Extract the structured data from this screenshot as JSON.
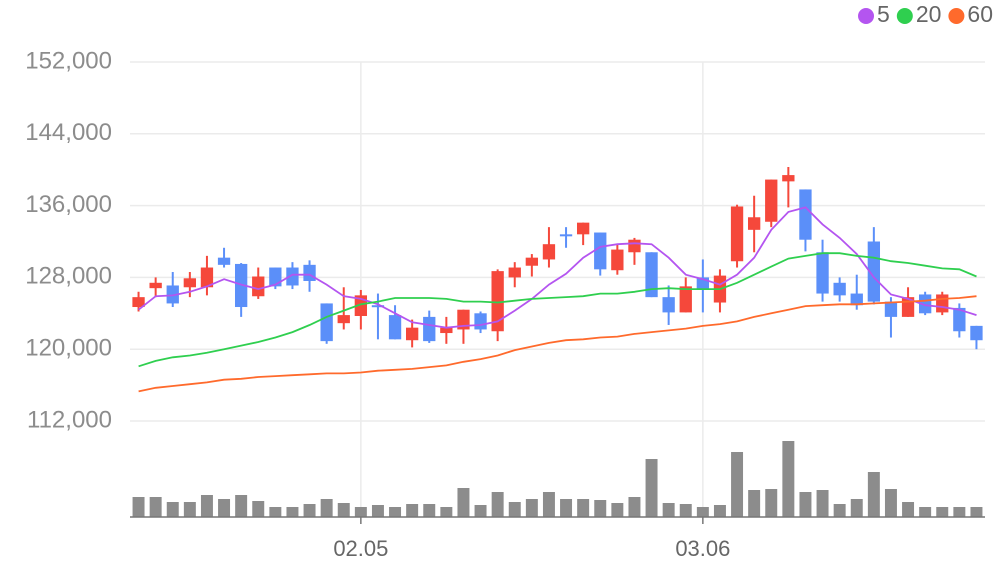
{
  "chart_data": {
    "type": "candlestick",
    "categories": [
      null,
      null,
      null,
      null,
      null,
      null,
      null,
      null,
      null,
      null,
      null,
      null,
      null,
      "02.05",
      null,
      null,
      null,
      null,
      null,
      null,
      null,
      null,
      null,
      null,
      null,
      null,
      null,
      null,
      null,
      null,
      null,
      null,
      null,
      "03.06",
      null,
      null,
      null,
      null,
      null,
      null,
      null,
      null,
      null,
      null,
      null,
      null,
      null,
      null,
      null,
      null
    ],
    "open": [
      124700,
      126800,
      127100,
      126900,
      126900,
      130200,
      129500,
      125900,
      129100,
      129100,
      129400,
      125100,
      122900,
      123700,
      124900,
      123800,
      121000,
      123600,
      121800,
      122200,
      124000,
      122000,
      128000,
      129300,
      130000,
      132800,
      132800,
      133000,
      128800,
      130800,
      130800,
      125800,
      124100,
      128000,
      125200,
      129800,
      133300,
      134200,
      138700,
      137800,
      130800,
      127400,
      126200,
      132000,
      125300,
      123600,
      126100,
      124100,
      124600,
      122600
    ],
    "high": [
      126400,
      128000,
      128600,
      128600,
      130400,
      131300,
      129600,
      129100,
      129100,
      129700,
      129900,
      125100,
      126900,
      126600,
      126200,
      124900,
      123300,
      124300,
      123600,
      124400,
      124200,
      128900,
      129700,
      130600,
      133600,
      133600,
      134100,
      133000,
      131700,
      132400,
      130800,
      127100,
      128000,
      130000,
      128900,
      136100,
      137100,
      138900,
      140300,
      137800,
      132200,
      128000,
      128300,
      133600,
      125800,
      126900,
      126400,
      126400,
      125100,
      122600
    ],
    "low": [
      124200,
      125800,
      124700,
      125800,
      126000,
      129100,
      123600,
      125600,
      126700,
      126700,
      126400,
      120600,
      122200,
      122200,
      121100,
      121100,
      120200,
      120700,
      120600,
      120600,
      121800,
      120900,
      126900,
      128100,
      129100,
      131300,
      131600,
      128200,
      128300,
      129400,
      125800,
      122700,
      124100,
      124100,
      124100,
      129100,
      130800,
      133600,
      135800,
      130900,
      125300,
      125300,
      124400,
      125000,
      121300,
      123600,
      123800,
      123800,
      121300,
      120000
    ],
    "close": [
      125800,
      127400,
      125100,
      127900,
      129100,
      129400,
      124700,
      128100,
      127000,
      127100,
      127600,
      120900,
      123800,
      126000,
      124800,
      121100,
      122400,
      120900,
      122400,
      124400,
      122200,
      128700,
      129100,
      130200,
      131700,
      132600,
      134100,
      128900,
      131100,
      132200,
      125800,
      124100,
      127000,
      126600,
      128200,
      135900,
      134700,
      138900,
      139400,
      132200,
      126200,
      126000,
      124900,
      125300,
      123600,
      125800,
      124000,
      126100,
      122000,
      121000
    ],
    "up_color": "#f5483b",
    "down_color": "#5b8ff9",
    "series": [
      {
        "name": "5",
        "color": "#b455f0",
        "values": [
          124400,
          125900,
          126000,
          126400,
          127000,
          127800,
          127200,
          126700,
          127200,
          128300,
          128300,
          127200,
          125900,
          125600,
          125000,
          124000,
          123000,
          122700,
          122400,
          122600,
          122700,
          123100,
          124300,
          125600,
          127200,
          128400,
          130200,
          131400,
          131700,
          131800,
          131700,
          130200,
          128300,
          127800,
          127200,
          128300,
          130200,
          133300,
          135300,
          135800,
          133900,
          132400,
          130600,
          128000,
          126100,
          125600,
          124900,
          124700,
          124400,
          123800
        ]
      },
      {
        "name": "20",
        "color": "#2fcf4f",
        "values": [
          118100,
          118700,
          119100,
          119300,
          119600,
          120000,
          120400,
          120800,
          121300,
          121900,
          122700,
          123600,
          124300,
          125000,
          125300,
          125700,
          125700,
          125700,
          125600,
          125300,
          125300,
          125200,
          125400,
          125600,
          125700,
          125800,
          125900,
          126200,
          126200,
          126400,
          126700,
          126800,
          126700,
          126700,
          126700,
          127400,
          128300,
          129200,
          130100,
          130400,
          130700,
          130700,
          130400,
          130200,
          129800,
          129600,
          129300,
          129000,
          128900,
          128100
        ]
      },
      {
        "name": "60",
        "color": "#ff6a2c",
        "values": [
          115300,
          115700,
          115900,
          116100,
          116300,
          116600,
          116700,
          116900,
          117000,
          117100,
          117200,
          117300,
          117300,
          117400,
          117600,
          117700,
          117800,
          118000,
          118200,
          118600,
          118900,
          119300,
          119900,
          120300,
          120700,
          121000,
          121100,
          121300,
          121400,
          121700,
          121900,
          122100,
          122300,
          122600,
          122800,
          123100,
          123600,
          124000,
          124400,
          124800,
          124900,
          125000,
          125000,
          125100,
          125200,
          125300,
          125400,
          125600,
          125700,
          125900
        ]
      }
    ],
    "ylim": [
      112000,
      152000
    ],
    "yticks": [
      {
        "value": 112000,
        "label": "112,000"
      },
      {
        "value": 120000,
        "label": "120,000"
      },
      {
        "value": 128000,
        "label": "128,000"
      },
      {
        "value": 136000,
        "label": "136,000"
      },
      {
        "value": 144000,
        "label": "144,000"
      },
      {
        "value": 152000,
        "label": "152,000"
      }
    ],
    "grid": true,
    "volume": {
      "color": "#8c8c8c",
      "ylim": [
        0,
        80
      ],
      "values": [
        20,
        20,
        15,
        15,
        22,
        18,
        22,
        16,
        10,
        10,
        13,
        18,
        14,
        10,
        12,
        10,
        13,
        13,
        10,
        29,
        12,
        25,
        15,
        18,
        25,
        18,
        18,
        17,
        14,
        20,
        58,
        14,
        13,
        10,
        12,
        65,
        27,
        28,
        76,
        25,
        27,
        13,
        18,
        45,
        28,
        15,
        10,
        10,
        10,
        10
      ]
    }
  }
}
